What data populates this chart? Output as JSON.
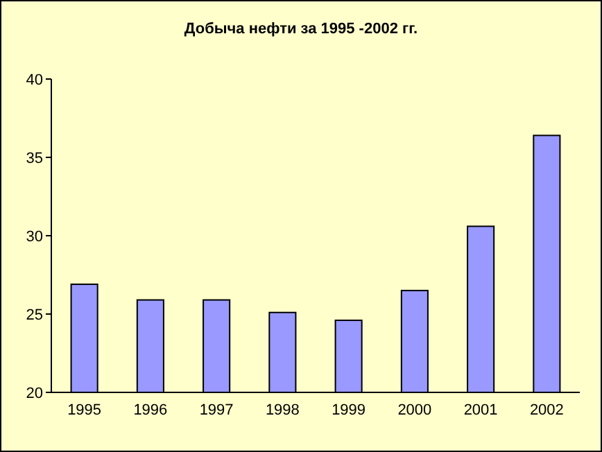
{
  "chart_data": {
    "type": "bar",
    "title": "Добыча нефти за 1995 -2002 гг.",
    "categories": [
      "1995",
      "1996",
      "1997",
      "1998",
      "1999",
      "2000",
      "2001",
      "2002"
    ],
    "values": [
      26.9,
      25.9,
      25.9,
      25.1,
      24.6,
      26.5,
      30.6,
      36.4
    ],
    "color": "#9999ff",
    "ylim": [
      20,
      40
    ],
    "yticks": [
      20,
      25,
      30,
      35,
      40
    ],
    "grid": false
  }
}
